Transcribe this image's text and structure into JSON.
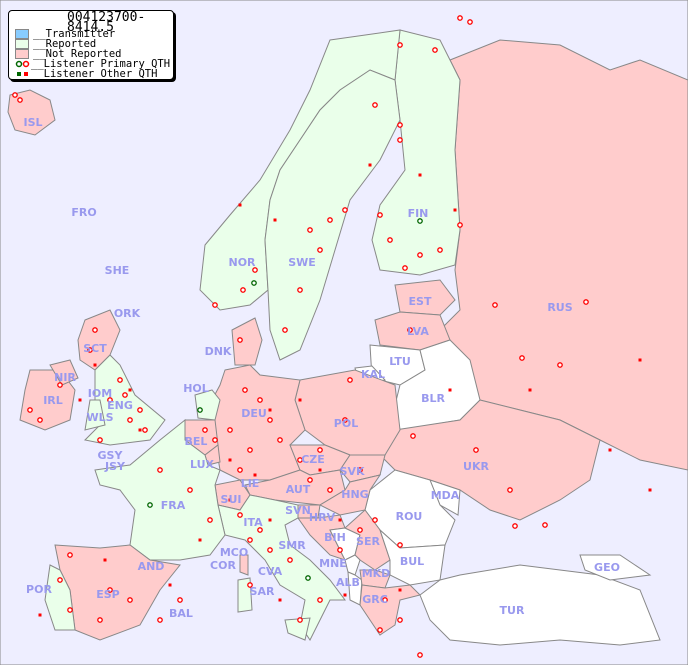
{
  "title": "004123700-8414.5",
  "legend": {
    "transmitter": "__Transmitter",
    "reported": "__Reported",
    "not_reported": "__Not Reported",
    "primary_qth": "__Listener Primary QTH",
    "other_qth": "__Listener Other QTH"
  },
  "colors": {
    "background": "#eeeeff",
    "transmitter": "#88ccff",
    "reported": "#eaffea",
    "not_reported": "#ffcccc",
    "no_data": "#ffffff",
    "marker_red": "#ff0000",
    "marker_green": "#006600",
    "country_label": "#9999ee"
  },
  "countries": [
    "ISL",
    "FRO",
    "SHE",
    "ORK",
    "NOR",
    "SWE",
    "FIN",
    "RUS",
    "EST",
    "LVA",
    "LTU",
    "KAL",
    "BLR",
    "DNK",
    "HOL",
    "DEU",
    "POL",
    "SCT",
    "NIR",
    "IRL",
    "IOM",
    "ENG",
    "WLS",
    "GSY",
    "JSY",
    "BEL",
    "LUX",
    "FRA",
    "SUI",
    "LIE",
    "AUT",
    "CZE",
    "SVK",
    "HNG",
    "UKR",
    "MDA",
    "ROU",
    "SVN",
    "HRV",
    "BIH",
    "SER",
    "ITA",
    "SMR",
    "MCO",
    "COR",
    "CVA",
    "SAR",
    "MNE",
    "ALB",
    "MKD",
    "BUL",
    "GRC",
    "TUR",
    "GEO",
    "AND",
    "ESP",
    "POR",
    "BAL"
  ]
}
